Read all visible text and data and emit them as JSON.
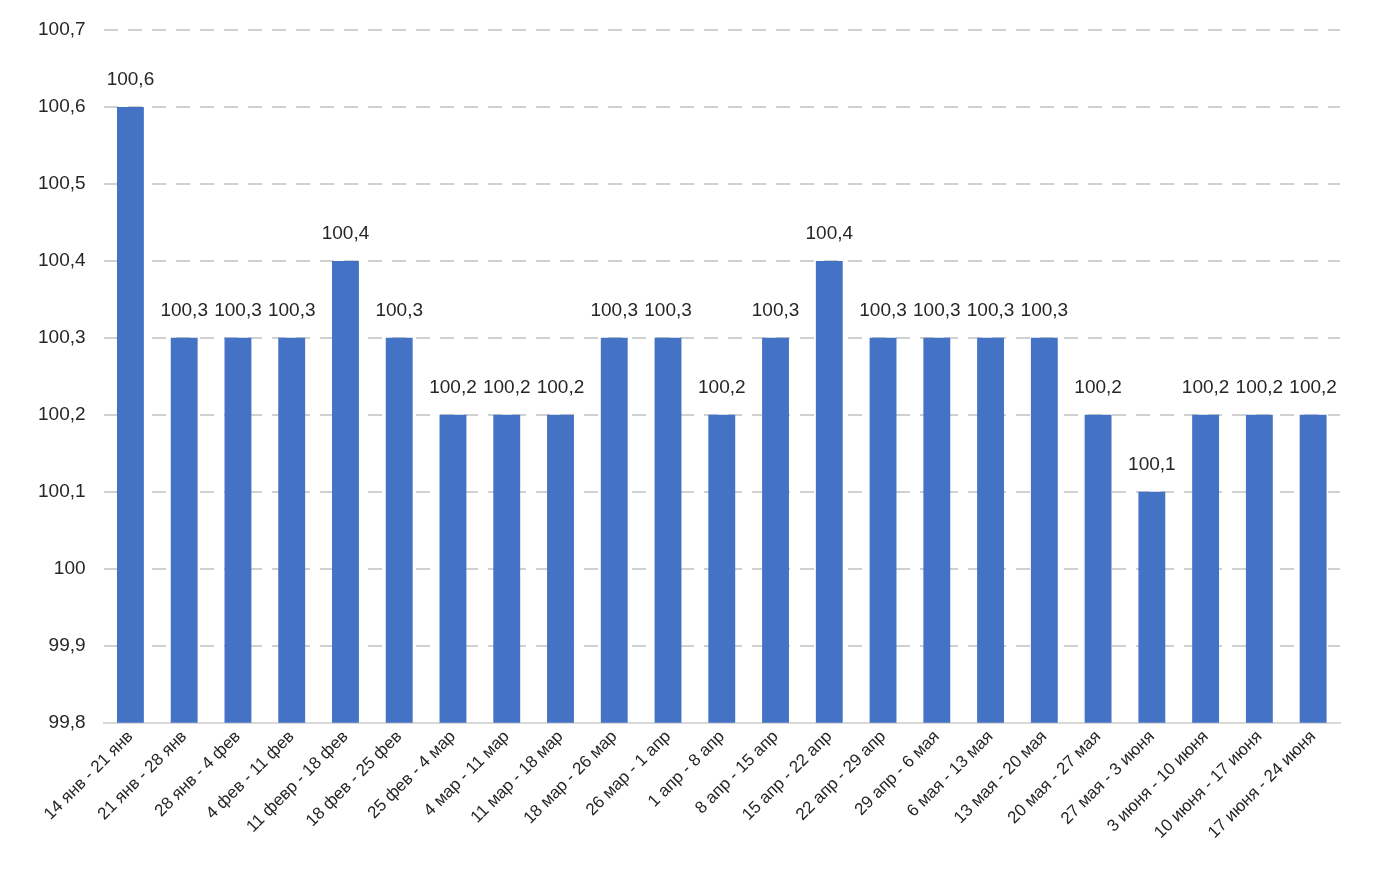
{
  "chart_data": {
    "type": "bar",
    "categories": [
      "14 янв - 21 янв",
      "21 янв - 28 янв",
      "28 янв - 4 фев",
      "4 фев - 11 фев",
      "11 февр - 18 фев",
      "18 фев - 25 фев",
      "25 фев - 4 мар",
      "4 мар - 11 мар",
      "11 мар - 18 мар",
      "18 мар - 26 мар",
      "26 мар - 1 апр",
      "1 апр - 8 апр",
      "8 апр - 15 апр",
      "15 апр - 22 апр",
      "22 апр - 29 апр",
      "29 апр - 6 мая",
      "6 мая - 13 мая",
      "13 мая - 20 мая",
      "20 мая - 27 мая",
      "27 мая - 3 июня",
      "3 июня - 10 июня",
      "10 июня - 17 июня",
      "17 июня - 24 июня"
    ],
    "values": [
      100.6,
      100.3,
      100.3,
      100.3,
      100.4,
      100.3,
      100.2,
      100.2,
      100.2,
      100.3,
      100.3,
      100.2,
      100.3,
      100.4,
      100.3,
      100.3,
      100.3,
      100.3,
      100.2,
      100.1,
      100.2,
      100.2,
      100.2
    ],
    "value_labels": [
      "100,6",
      "100,3",
      "100,3",
      "100,3",
      "100,4",
      "100,3",
      "100,2",
      "100,2",
      "100,2",
      "100,3",
      "100,3",
      "100,2",
      "100,3",
      "100,4",
      "100,3",
      "100,3",
      "100,3",
      "100,3",
      "100,2",
      "100,1",
      "100,2",
      "100,2",
      "100,2"
    ],
    "color": "#4472c4",
    "ylim": [
      99.8,
      100.7
    ],
    "yticks": [
      {
        "value": 99.8,
        "label": "99,8"
      },
      {
        "value": 99.9,
        "label": "99,9"
      },
      100,
      {
        "value": 100.1,
        "label": "100,1"
      },
      {
        "value": 100.2,
        "label": "100,2"
      },
      {
        "value": 100.3,
        "label": "100,3"
      },
      {
        "value": 100.4,
        "label": "100,4"
      },
      {
        "value": 100.5,
        "label": "100,5"
      },
      {
        "value": 100.6,
        "label": "100,6"
      },
      {
        "value": 100.7,
        "label": "100,7"
      }
    ],
    "grid": "y"
  }
}
